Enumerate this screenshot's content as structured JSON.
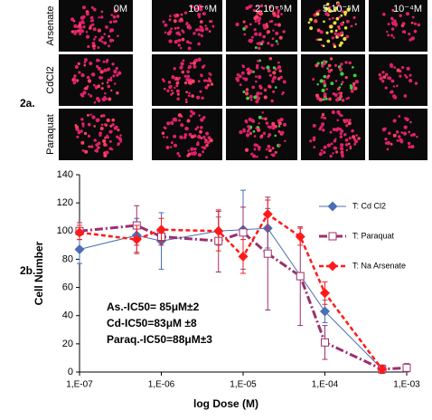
{
  "panel_labels": [
    "2a.",
    "2b."
  ],
  "images": {
    "columns": [
      "0M",
      "10⁻⁶M",
      "2.10⁻⁵M",
      "5.10⁻⁵M",
      "10⁻⁴M"
    ],
    "rows": [
      "Arsenate",
      "CdCl2",
      "Paraquat"
    ]
  },
  "chart_data": {
    "type": "scatter",
    "xlabel": "log Dose (M)",
    "ylabel": "Cell Number",
    "xscale": "log",
    "xlim": [
      1e-07,
      0.001
    ],
    "xticks": [
      {
        "value": 1e-07,
        "label": "1,E-07"
      },
      {
        "value": 1e-06,
        "label": "1,E-06"
      },
      {
        "value": 1e-05,
        "label": "1,E-05"
      },
      {
        "value": 0.0001,
        "label": "1,E-04"
      },
      {
        "value": 0.001,
        "label": "1,E-03"
      }
    ],
    "ylim": [
      0,
      140
    ],
    "yticks": [
      0,
      20,
      40,
      60,
      80,
      100,
      120,
      140
    ],
    "annotations": [
      "As.-IC50= 85μM±2",
      "Cd-IC50=83μM ±8",
      "Paraq.-IC50=88μM±3"
    ],
    "series": [
      {
        "name": "T: Cd Cl2",
        "color": "#4a6fb5",
        "marker": "diamond",
        "dash": "solid",
        "x": [
          1e-07,
          5e-07,
          1e-06,
          5e-06,
          1e-05,
          2e-05,
          0.0001,
          0.0005
        ],
        "values": [
          87,
          97,
          93,
          100,
          101,
          102,
          43,
          2
        ],
        "errors": [
          10,
          12,
          20,
          10,
          28,
          14,
          8,
          2
        ]
      },
      {
        "name": "T: Paraquat",
        "color": "#9c2f6e",
        "marker": "square",
        "dash": "dashdot",
        "x": [
          1e-07,
          5e-07,
          1e-06,
          5e-06,
          1e-05,
          2e-05,
          5e-05,
          0.0001,
          0.0005,
          0.001
        ],
        "values": [
          100,
          104,
          96,
          93,
          99,
          84,
          68,
          21,
          2,
          3
        ],
        "errors": [
          6,
          14,
          6,
          22,
          18,
          40,
          35,
          12,
          3,
          3
        ]
      },
      {
        "name": "T: Na Arsenate",
        "color": "#ff1a1a",
        "marker": "diamond",
        "dash": "dash",
        "x": [
          1e-07,
          5e-07,
          1e-06,
          5e-06,
          1e-05,
          2e-05,
          5e-05,
          0.0001,
          0.0005
        ],
        "values": [
          99,
          94,
          101,
          100,
          82,
          112,
          96,
          56,
          2
        ],
        "errors": [
          5,
          10,
          8,
          14,
          12,
          10,
          6,
          8,
          2
        ]
      }
    ]
  }
}
